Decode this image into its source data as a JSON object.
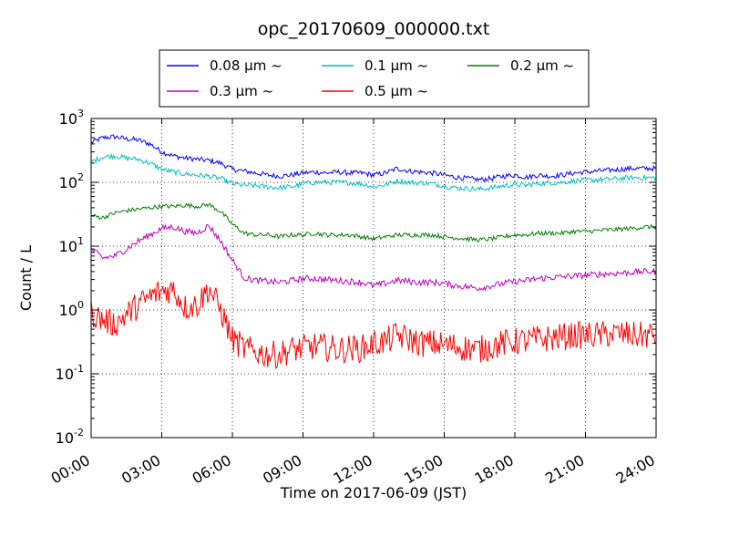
{
  "chart_data": {
    "type": "line",
    "title": "opc_20170609_000000.txt",
    "xlabel": "Time on 2017-06-09 (JST)",
    "ylabel": "Count / L",
    "x_unit": "hours",
    "xlim": [
      0,
      24
    ],
    "ylim": [
      0.01,
      1000
    ],
    "yscale": "log",
    "grid": true,
    "legend_position": "top-center",
    "x_tick_labels": [
      "00:00",
      "03:00",
      "06:00",
      "09:00",
      "12:00",
      "15:00",
      "18:00",
      "21:00",
      "24:00"
    ],
    "y_tick_labels": [
      {
        "base": "10",
        "exp": "-2"
      },
      {
        "base": "10",
        "exp": "-1"
      },
      {
        "base": "10",
        "exp": "0"
      },
      {
        "base": "10",
        "exp": "1"
      },
      {
        "base": "10",
        "exp": "2"
      },
      {
        "base": "10",
        "exp": "3"
      }
    ],
    "x": [
      0,
      0.5,
      1,
      1.5,
      2,
      2.5,
      3,
      3.5,
      4,
      4.5,
      5,
      5.5,
      6,
      6.5,
      7,
      7.5,
      8,
      8.5,
      9,
      9.5,
      10,
      10.5,
      11,
      11.5,
      12,
      12.5,
      13,
      13.5,
      14,
      14.5,
      15,
      15.5,
      16,
      16.5,
      17,
      17.5,
      18,
      18.5,
      19,
      19.5,
      20,
      20.5,
      21,
      21.5,
      22,
      22.5,
      23,
      23.5,
      24
    ],
    "series": [
      {
        "name": "0.08 μm ~",
        "color": "#0000ff",
        "values": [
          420,
          500,
          520,
          480,
          460,
          400,
          300,
          260,
          240,
          230,
          220,
          200,
          160,
          150,
          140,
          130,
          125,
          130,
          140,
          145,
          140,
          145,
          140,
          140,
          130,
          140,
          165,
          150,
          145,
          140,
          130,
          120,
          115,
          110,
          115,
          125,
          130,
          120,
          130,
          125,
          130,
          140,
          145,
          150,
          155,
          160,
          165,
          165,
          165
        ]
      },
      {
        "name": "0.1 μm ~",
        "color": "#00bfbf",
        "values": [
          210,
          250,
          260,
          240,
          230,
          200,
          160,
          145,
          135,
          130,
          125,
          115,
          95,
          90,
          88,
          85,
          82,
          85,
          95,
          100,
          100,
          100,
          98,
          95,
          85,
          92,
          105,
          100,
          98,
          95,
          88,
          82,
          80,
          78,
          82,
          88,
          92,
          90,
          96,
          98,
          100,
          105,
          108,
          110,
          112,
          115,
          118,
          118,
          118
        ]
      },
      {
        "name": "0.2 μm ~",
        "color": "#008000",
        "values": [
          30,
          28,
          33,
          36,
          38,
          40,
          42,
          42,
          44,
          42,
          45,
          35,
          22,
          16,
          15,
          15,
          14,
          15,
          15,
          16,
          15,
          15,
          15,
          14,
          13,
          14,
          15,
          15,
          15,
          15,
          14,
          13.5,
          13,
          12.5,
          13,
          14,
          15,
          15,
          16,
          16,
          16,
          17,
          17,
          17.5,
          18,
          18.5,
          19,
          20,
          20
        ]
      },
      {
        "name": "0.3 μm ~",
        "color": "#bf00bf",
        "values": [
          9,
          6.5,
          7,
          9,
          12,
          15,
          19,
          20,
          17,
          16,
          21,
          12,
          6,
          3.2,
          2.9,
          2.8,
          2.7,
          2.9,
          3.1,
          3.1,
          3.0,
          2.9,
          2.8,
          2.7,
          2.4,
          2.6,
          2.9,
          2.8,
          2.7,
          2.7,
          2.6,
          2.4,
          2.3,
          2.2,
          2.4,
          2.6,
          2.8,
          2.9,
          3.1,
          3.2,
          3.3,
          3.4,
          3.5,
          3.6,
          3.7,
          3.8,
          3.9,
          4.0,
          4.0
        ]
      },
      {
        "name": "0.5 μm ~",
        "color": "#ff0000",
        "values": [
          0.9,
          0.7,
          0.6,
          0.85,
          1.2,
          1.6,
          2.0,
          2.1,
          1.1,
          1.2,
          2.2,
          1.0,
          0.35,
          0.25,
          0.22,
          0.2,
          0.2,
          0.24,
          0.25,
          0.27,
          0.26,
          0.24,
          0.25,
          0.25,
          0.3,
          0.32,
          0.4,
          0.35,
          0.3,
          0.3,
          0.28,
          0.27,
          0.25,
          0.24,
          0.27,
          0.3,
          0.32,
          0.33,
          0.35,
          0.36,
          0.38,
          0.4,
          0.4,
          0.4,
          0.42,
          0.42,
          0.4,
          0.4,
          0.4
        ]
      }
    ]
  }
}
